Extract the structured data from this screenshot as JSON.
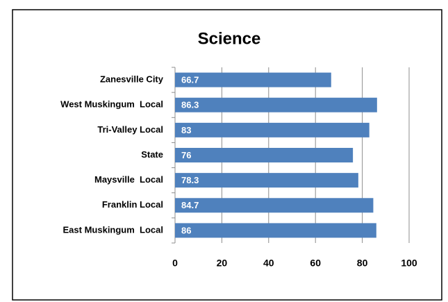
{
  "chart_data": {
    "type": "bar",
    "orientation": "horizontal",
    "title": "Science",
    "categories": [
      "Zanesville City",
      "West Muskingum  Local",
      "Tri-Valley Local",
      "State",
      "Maysville  Local",
      "Franklin Local",
      "East Muskingum  Local"
    ],
    "values": [
      66.7,
      86.3,
      83,
      76,
      78.3,
      84.7,
      86
    ],
    "color": "#4f81bd",
    "xlim": [
      0,
      100
    ],
    "xticks": [
      0,
      20,
      40,
      60,
      80,
      100
    ],
    "grid": true
  }
}
